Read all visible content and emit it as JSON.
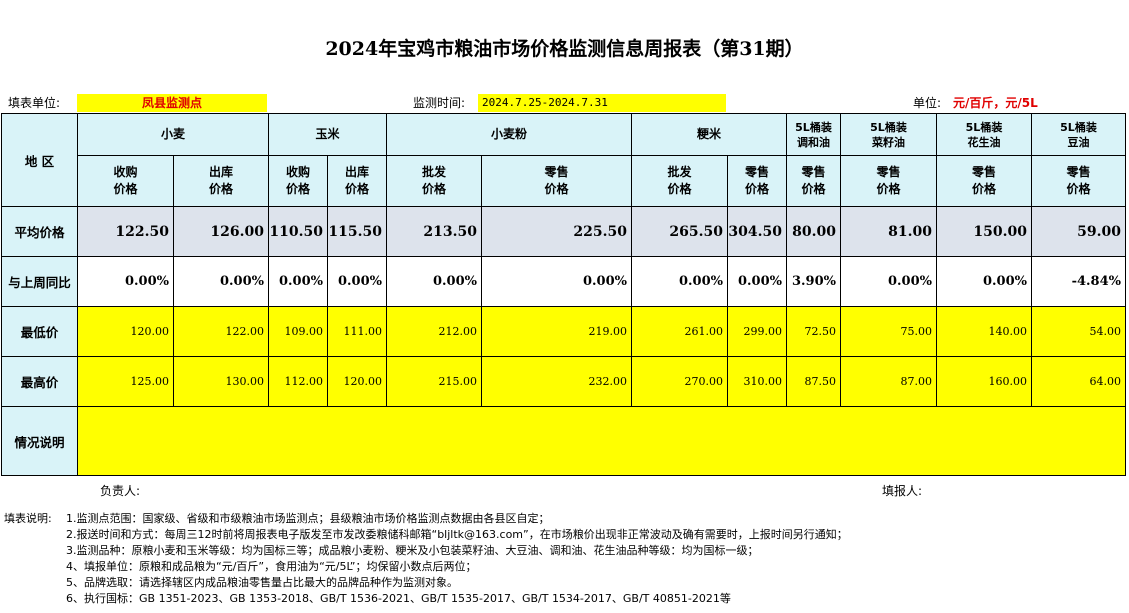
{
  "title": "2024年宝鸡市粮油市场价格监测信息周报表（第31期）",
  "info": {
    "unit_label": "填表单位:",
    "unit_value": "凤县监测点",
    "period_label": "监测时间:",
    "period_value": "2024.7.25-2024.7.31",
    "measure_label": "单位:",
    "measure_value": "元/百斤，元/5L"
  },
  "table": {
    "region_header": "地  区",
    "groups": {
      "wheat": "小麦",
      "corn": "玉米",
      "flour": "小麦粉",
      "rice": "粳米",
      "blend_oil": "5L桶装\n调和油",
      "rapeseed_oil": "5L桶装\n菜籽油",
      "peanut_oil": "5L桶装\n花生油",
      "soy_oil": "5L桶装\n豆油"
    },
    "subheaders": {
      "buy": "收购\n价格",
      "out": "出库\n价格",
      "wholesale": "批发\n价格",
      "retail": "零售\n价格"
    },
    "rows": {
      "avg": {
        "label": "平均价格",
        "values": [
          "122.50",
          "126.00",
          "110.50",
          "115.50",
          "213.50",
          "225.50",
          "265.50",
          "304.50",
          "80.00",
          "81.00",
          "150.00",
          "59.00"
        ]
      },
      "change": {
        "label": "与上周同比",
        "values": [
          "0.00%",
          "0.00%",
          "0.00%",
          "0.00%",
          "0.00%",
          "0.00%",
          "0.00%",
          "0.00%",
          "3.90%",
          "0.00%",
          "0.00%",
          "-4.84%"
        ]
      },
      "min": {
        "label": "最低价",
        "values": [
          "120.00",
          "122.00",
          "109.00",
          "111.00",
          "212.00",
          "219.00",
          "261.00",
          "299.00",
          "72.50",
          "75.00",
          "140.00",
          "54.00"
        ]
      },
      "max": {
        "label": "最高价",
        "values": [
          "125.00",
          "130.00",
          "112.00",
          "120.00",
          "215.00",
          "232.00",
          "270.00",
          "310.00",
          "87.50",
          "87.00",
          "160.00",
          "64.00"
        ]
      },
      "notes": {
        "label": "情况说明"
      }
    }
  },
  "signatures": {
    "responsible": "负责人:",
    "filler": "填报人:"
  },
  "notes": {
    "heading": "填表说明:",
    "items": [
      "1.监测点范围：国家级、省级和市级粮油市场监测点；县级粮油市场价格监测点数据由各县区自定；",
      "2.报送时间和方式：每周三12时前将周报表电子版发至市发改委粮储科邮箱“bljltk@163.com”，在市场粮价出现非正常波动及确有需要时，上报时间另行通知；",
      "3.监测品种：原粮小麦和玉米等级：均为国标三等；成品粮小麦粉、粳米及小包装菜籽油、大豆油、调和油、花生油品种等级：均为国标一级；",
      "4、填报单位：原粮和成品粮为“元/百斤”，食用油为“元/5L”；均保留小数点后两位；",
      "5、品牌选取：请选择辖区内成品粮油零售量占比最大的品牌品种作为监测对象。",
      "6、执行国标：GB 1351-2023、GB 1353-2018、GB/T 1536-2021、GB/T 1535-2017、GB/T 1534-2017、GB/T 40851-2021等"
    ]
  }
}
